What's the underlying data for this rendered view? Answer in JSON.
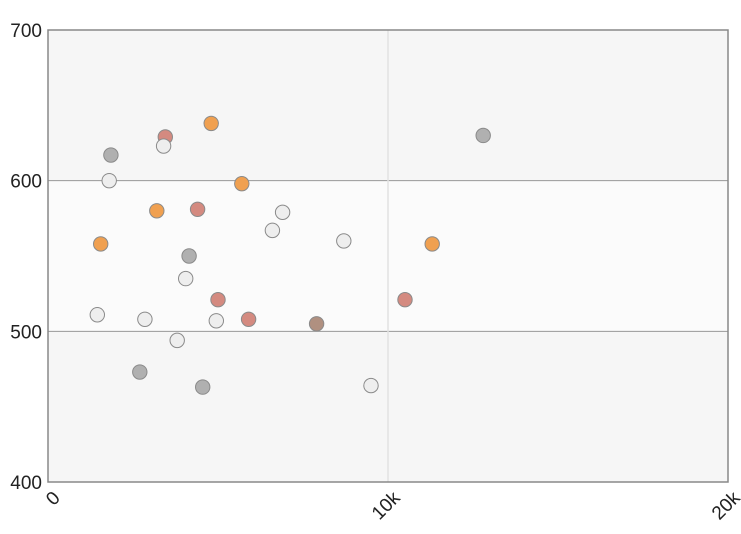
{
  "chart_data": {
    "type": "scatter",
    "title": "",
    "xlabel": "",
    "ylabel": "",
    "xlim": [
      0,
      20000
    ],
    "ylim": [
      400,
      700
    ],
    "x_ticks": [
      {
        "value": 0,
        "label": "0"
      },
      {
        "value": 10000,
        "label": "10k"
      },
      {
        "value": 20000,
        "label": "20k"
      }
    ],
    "y_ticks": [
      {
        "value": 400,
        "label": "400"
      },
      {
        "value": 500,
        "label": "500"
      },
      {
        "value": 600,
        "label": "600"
      },
      {
        "value": 700,
        "label": "700"
      }
    ],
    "grid": true,
    "colors": {
      "orange": "#f0a050",
      "red": "#d48a80",
      "gray": "#b0b0b0",
      "light": "#eeeeee",
      "brown": "#b09080"
    },
    "points": [
      {
        "x": 1550,
        "y": 558,
        "color": "orange"
      },
      {
        "x": 3200,
        "y": 580,
        "color": "orange"
      },
      {
        "x": 4800,
        "y": 638,
        "color": "orange"
      },
      {
        "x": 5700,
        "y": 598,
        "color": "orange"
      },
      {
        "x": 11300,
        "y": 558,
        "color": "orange"
      },
      {
        "x": 3450,
        "y": 629,
        "color": "red"
      },
      {
        "x": 4400,
        "y": 581,
        "color": "red"
      },
      {
        "x": 5000,
        "y": 521,
        "color": "red"
      },
      {
        "x": 5900,
        "y": 508,
        "color": "red"
      },
      {
        "x": 10500,
        "y": 521,
        "color": "red"
      },
      {
        "x": 1850,
        "y": 617,
        "color": "gray"
      },
      {
        "x": 4150,
        "y": 550,
        "color": "gray"
      },
      {
        "x": 2700,
        "y": 473,
        "color": "gray"
      },
      {
        "x": 4550,
        "y": 463,
        "color": "gray"
      },
      {
        "x": 12800,
        "y": 630,
        "color": "gray"
      },
      {
        "x": 7900,
        "y": 505,
        "color": "brown"
      },
      {
        "x": 1800,
        "y": 600,
        "color": "light"
      },
      {
        "x": 3400,
        "y": 623,
        "color": "light"
      },
      {
        "x": 1450,
        "y": 511,
        "color": "light"
      },
      {
        "x": 2850,
        "y": 508,
        "color": "light"
      },
      {
        "x": 4050,
        "y": 535,
        "color": "light"
      },
      {
        "x": 3800,
        "y": 494,
        "color": "light"
      },
      {
        "x": 4950,
        "y": 507,
        "color": "light"
      },
      {
        "x": 6600,
        "y": 567,
        "color": "light"
      },
      {
        "x": 6900,
        "y": 579,
        "color": "light"
      },
      {
        "x": 8700,
        "y": 560,
        "color": "light"
      },
      {
        "x": 9500,
        "y": 464,
        "color": "light"
      }
    ]
  }
}
